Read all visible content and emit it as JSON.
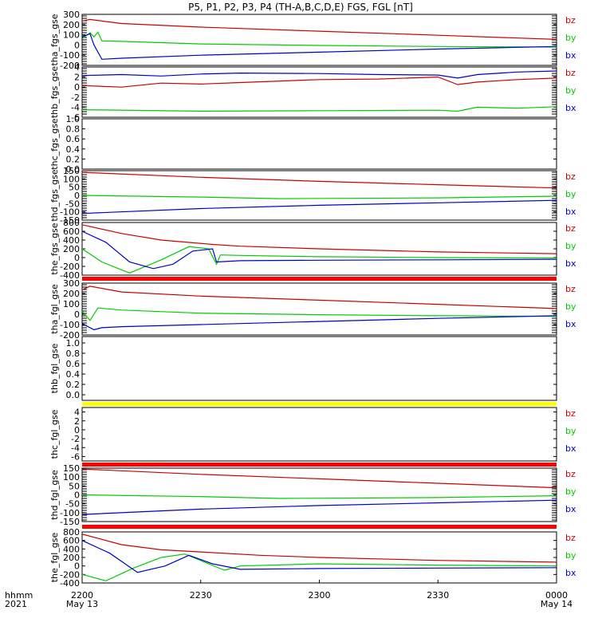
{
  "title": "P5, P1, P2, P3, P4 (TH-A,B,C,D,E) FGS, FGL [nT]",
  "colors": {
    "bz": "#cc0000",
    "by": "#00cc00",
    "bx": "#0000cc",
    "flag_red": "#ff0000",
    "flag_yellow": "#ffff00"
  },
  "time_axis": {
    "label_line1": "hhmm",
    "label_line2": "2021",
    "ticks": [
      {
        "main": "2200",
        "sub": "May 13"
      },
      {
        "main": "2230",
        "sub": ""
      },
      {
        "main": "2300",
        "sub": ""
      },
      {
        "main": "2330",
        "sub": ""
      },
      {
        "main": "0000",
        "sub": "May 14"
      }
    ],
    "range_minutes": [
      0,
      120
    ]
  },
  "chart_data": [
    {
      "type": "line",
      "ylabel": "tha_fgs_gse",
      "ylim": [
        -200,
        300
      ],
      "yticks": [
        "300",
        "200",
        "100",
        "0",
        "-100",
        "-200"
      ],
      "legend": [
        "bz",
        "by",
        "bx"
      ],
      "series": [
        {
          "name": "bz",
          "x": [
            0,
            2,
            10,
            30,
            60,
            90,
            120
          ],
          "y": [
            235,
            250,
            210,
            175,
            135,
            95,
            55
          ]
        },
        {
          "name": "by",
          "x": [
            0,
            2,
            3,
            4,
            5,
            10,
            30,
            60,
            90,
            120
          ],
          "y": [
            60,
            120,
            80,
            125,
            40,
            35,
            10,
            -5,
            -15,
            -20
          ]
        },
        {
          "name": "bx",
          "x": [
            0,
            2,
            3,
            5,
            10,
            30,
            60,
            90,
            120
          ],
          "y": [
            80,
            110,
            0,
            -140,
            -130,
            -100,
            -70,
            -40,
            -15
          ]
        }
      ]
    },
    {
      "type": "line",
      "ylabel": "thb_fgs_gse",
      "ylim": [
        -6,
        4
      ],
      "yticks": [
        "4",
        "2",
        "0",
        "-2",
        "-4",
        "-6"
      ],
      "legend": [
        "bz",
        "by",
        "bx"
      ],
      "series": [
        {
          "name": "bz",
          "x": [
            0,
            10,
            20,
            30,
            40,
            60,
            75,
            90,
            95,
            100,
            110,
            120
          ],
          "y": [
            0.3,
            0.0,
            0.8,
            0.6,
            0.9,
            1.5,
            1.6,
            2.0,
            0.5,
            1.0,
            1.5,
            1.8
          ]
        },
        {
          "name": "by",
          "x": [
            0,
            30,
            60,
            90,
            95,
            100,
            110,
            120
          ],
          "y": [
            -4.5,
            -4.8,
            -4.7,
            -4.6,
            -4.8,
            -4.0,
            -4.2,
            -3.9
          ]
        },
        {
          "name": "bx",
          "x": [
            0,
            10,
            20,
            30,
            40,
            60,
            75,
            90,
            95,
            100,
            110,
            120
          ],
          "y": [
            2.3,
            2.5,
            2.2,
            2.6,
            2.8,
            2.7,
            2.5,
            2.4,
            1.8,
            2.5,
            3.0,
            3.2
          ]
        }
      ]
    },
    {
      "type": "line",
      "ylabel": "thc_fgs_gse",
      "ylim": [
        0,
        1
      ],
      "yticks": [
        "1.0",
        "0.8",
        "0.6",
        "0.4",
        "0.2",
        "0.0"
      ],
      "legend": [],
      "series": []
    },
    {
      "type": "line",
      "ylabel": "thd_fgs_gse",
      "ylim": [
        -150,
        150
      ],
      "yticks": [
        "150",
        "100",
        "50",
        "0",
        "-50",
        "-100",
        "-150"
      ],
      "legend": [
        "bz",
        "by",
        "bx"
      ],
      "series": [
        {
          "name": "bz",
          "x": [
            0,
            30,
            60,
            90,
            120
          ],
          "y": [
            140,
            110,
            85,
            65,
            45
          ]
        },
        {
          "name": "by",
          "x": [
            0,
            30,
            50,
            90,
            120
          ],
          "y": [
            0,
            -10,
            -20,
            -15,
            -5
          ]
        },
        {
          "name": "bx",
          "x": [
            0,
            30,
            60,
            90,
            120
          ],
          "y": [
            -110,
            -80,
            -60,
            -45,
            -30
          ]
        }
      ]
    },
    {
      "type": "line",
      "ylabel": "the_fgs_gse",
      "ylim": [
        -400,
        800
      ],
      "yticks": [
        "800",
        "600",
        "400",
        "200",
        "0",
        "-200",
        "-400"
      ],
      "legend": [
        "bz",
        "by",
        "bx"
      ],
      "series": [
        {
          "name": "bz",
          "x": [
            0,
            10,
            20,
            33,
            40,
            60,
            90,
            120
          ],
          "y": [
            750,
            550,
            400,
            300,
            260,
            200,
            130,
            90
          ]
        },
        {
          "name": "by",
          "x": [
            0,
            5,
            12,
            20,
            27,
            32,
            34,
            35,
            40,
            60,
            90,
            120
          ],
          "y": [
            200,
            -100,
            -350,
            -50,
            250,
            200,
            -150,
            60,
            50,
            20,
            0,
            -10
          ]
        },
        {
          "name": "bx",
          "x": [
            0,
            6,
            12,
            18,
            23,
            28,
            33,
            34,
            40,
            60,
            90,
            120
          ],
          "y": [
            600,
            350,
            -100,
            -250,
            -150,
            150,
            200,
            -100,
            -70,
            -60,
            -50,
            -40
          ]
        }
      ]
    },
    {
      "type": "line",
      "ylabel": "tha_fgl_gse",
      "ylim": [
        -200,
        300
      ],
      "yticks": [
        "300",
        "200",
        "100",
        "0",
        "-100",
        "-200"
      ],
      "legend": [
        "bz",
        "by",
        "bx"
      ],
      "series": [
        {
          "name": "bz",
          "x": [
            0,
            2,
            10,
            30,
            60,
            90,
            120
          ],
          "y": [
            235,
            270,
            215,
            175,
            135,
            95,
            55
          ]
        },
        {
          "name": "by",
          "x": [
            0,
            2,
            4,
            10,
            30,
            60,
            90,
            120
          ],
          "y": [
            30,
            -60,
            60,
            40,
            10,
            -5,
            -15,
            -20
          ]
        },
        {
          "name": "bx",
          "x": [
            0,
            3,
            5,
            10,
            30,
            60,
            90,
            120
          ],
          "y": [
            -90,
            -150,
            -130,
            -120,
            -100,
            -70,
            -40,
            -15
          ]
        }
      ]
    },
    {
      "type": "line",
      "ylabel": "thb_fgl_gse",
      "ylim": [
        0,
        1
      ],
      "yticks": [
        "1.0",
        "0.8",
        "0.6",
        "0.4",
        "0.2",
        "0.0"
      ],
      "legend": [],
      "series": []
    },
    {
      "type": "line",
      "ylabel": "thc_fgl_gse",
      "ylim": [
        -7,
        5
      ],
      "yticks": [
        "4",
        "2",
        "0",
        "-2",
        "-4",
        "-6"
      ],
      "legend": [
        "bz",
        "by",
        "bx"
      ],
      "series": []
    },
    {
      "type": "line",
      "ylabel": "thd_fgl_gse",
      "ylim": [
        -150,
        150
      ],
      "yticks": [
        "150",
        "100",
        "50",
        "0",
        "-50",
        "-100",
        "-150"
      ],
      "legend": [
        "bz",
        "by",
        "bx"
      ],
      "series": [
        {
          "name": "bz",
          "x": [
            0,
            30,
            60,
            90,
            120
          ],
          "y": [
            145,
            115,
            90,
            65,
            40
          ]
        },
        {
          "name": "by",
          "x": [
            0,
            30,
            50,
            90,
            120
          ],
          "y": [
            0,
            -10,
            -20,
            -15,
            -5
          ]
        },
        {
          "name": "bx",
          "x": [
            0,
            30,
            60,
            90,
            120
          ],
          "y": [
            -110,
            -80,
            -60,
            -45,
            -30
          ]
        }
      ]
    },
    {
      "type": "line",
      "ylabel": "the_fgl_gse",
      "ylim": [
        -400,
        800
      ],
      "yticks": [
        "800",
        "600",
        "400",
        "200",
        "0",
        "-200",
        "-400"
      ],
      "legend": [
        "bz",
        "by",
        "bx"
      ],
      "series": [
        {
          "name": "bz",
          "x": [
            0,
            10,
            20,
            30,
            45,
            60,
            90,
            120
          ],
          "y": [
            750,
            500,
            380,
            330,
            250,
            200,
            130,
            90
          ]
        },
        {
          "name": "by",
          "x": [
            0,
            6,
            13,
            20,
            26,
            32,
            36,
            40,
            60,
            90,
            120
          ],
          "y": [
            -200,
            -350,
            -50,
            200,
            280,
            50,
            -100,
            0,
            50,
            20,
            0
          ]
        },
        {
          "name": "bx",
          "x": [
            0,
            7,
            14,
            21,
            27,
            33,
            40,
            60,
            90,
            120
          ],
          "y": [
            600,
            300,
            -150,
            0,
            250,
            50,
            -80,
            -60,
            -50,
            -40
          ]
        }
      ]
    }
  ]
}
